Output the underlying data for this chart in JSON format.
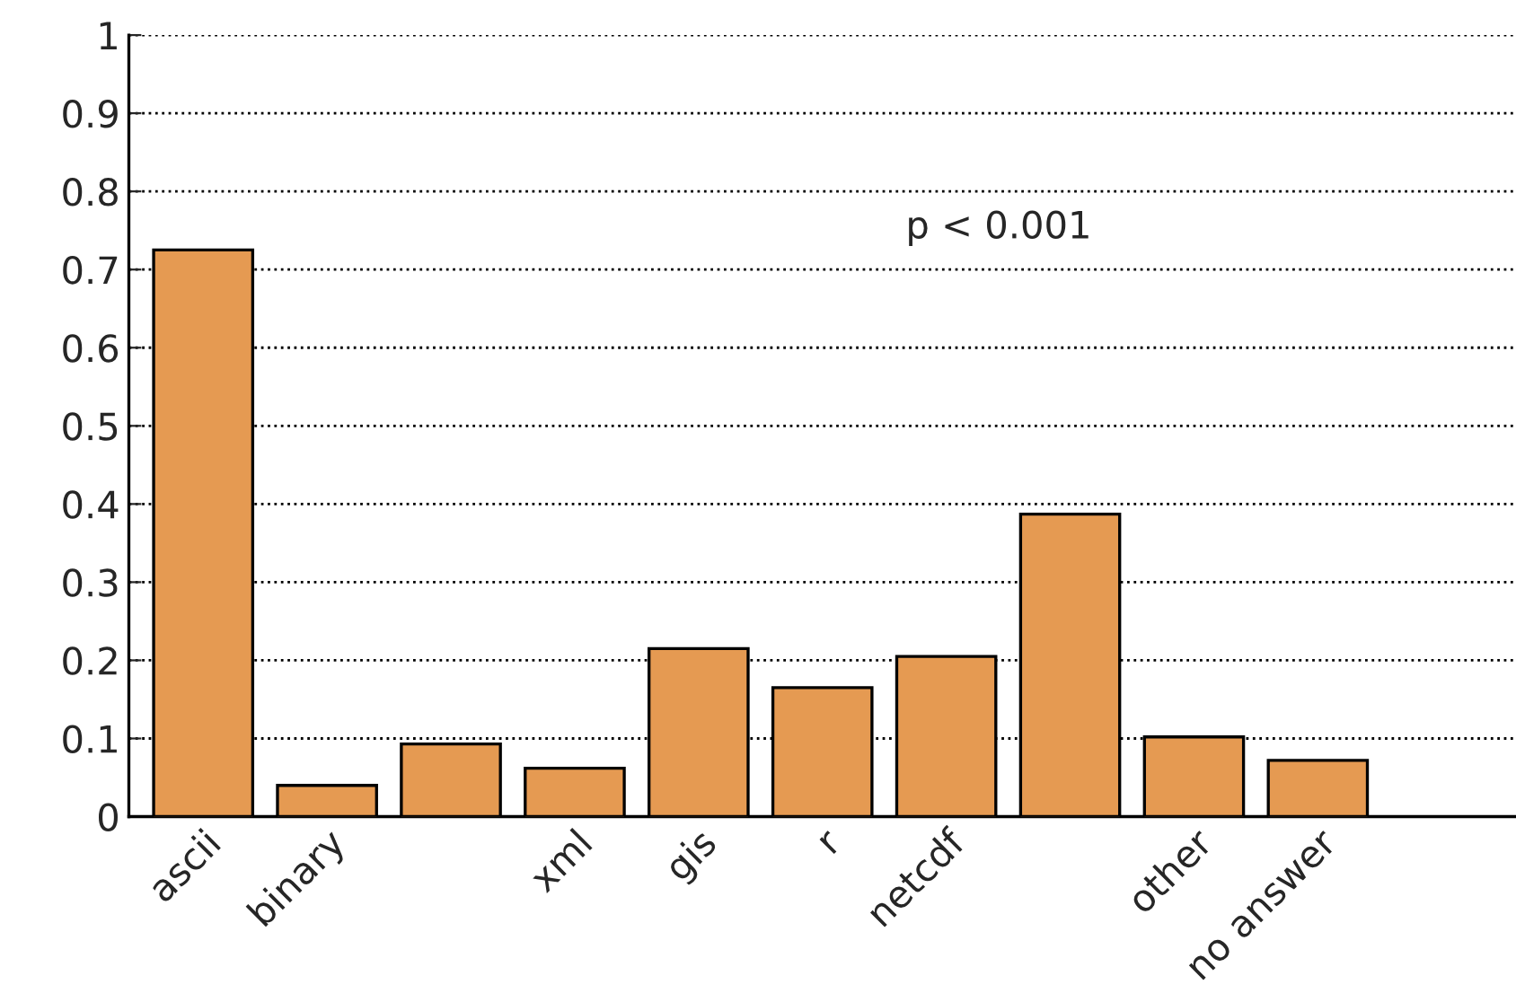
{
  "chart_data": {
    "type": "bar",
    "categories": [
      "ascii",
      "binary",
      null,
      "xml",
      "gis",
      "r",
      "netcdf",
      null,
      "other",
      "no answer"
    ],
    "values": [
      0.725,
      0.04,
      0.093,
      0.062,
      0.215,
      0.165,
      0.205,
      0.387,
      0.102,
      0.072
    ],
    "color": "#e59a52",
    "ylim": [
      0,
      1
    ],
    "yticks": [
      0,
      {
        "value": 0.1,
        "label": "0.1"
      },
      {
        "value": 0.2,
        "label": "0.2"
      },
      {
        "value": 0.3,
        "label": "0.3"
      },
      {
        "value": 0.4,
        "label": "0.4"
      },
      {
        "value": 0.5,
        "label": "0.5"
      },
      {
        "value": 0.6,
        "label": "0.6"
      },
      {
        "value": 0.7,
        "label": "0.7"
      },
      {
        "value": 0.8,
        "label": "0.8"
      },
      {
        "value": 0.9,
        "label": "0.9"
      },
      1
    ],
    "grid": "y",
    "line_style": "dotted",
    "annotations": [
      "p < 0.001"
    ]
  }
}
